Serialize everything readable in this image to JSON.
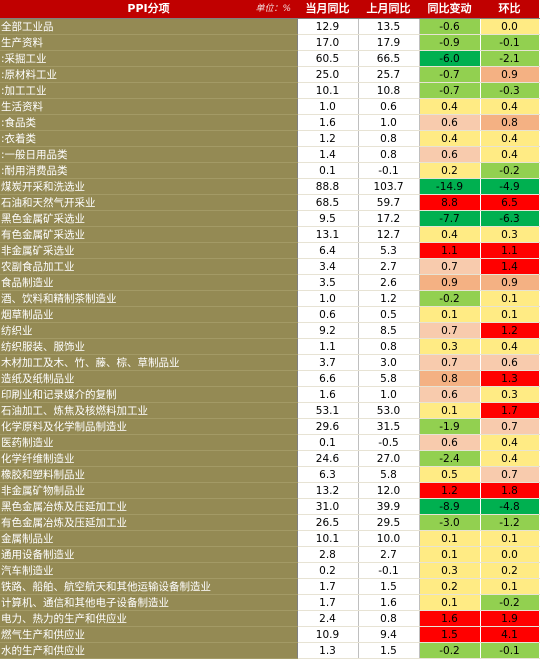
{
  "header": {
    "col_name": "PPI分项",
    "unit": "单位：%",
    "col_cur": "当月同比",
    "col_prev": "上月同比",
    "col_chg": "同比变动",
    "col_mom": "环比"
  },
  "colors": {
    "header_bg": "#c00000",
    "name_bg": "#948a54",
    "heat_scale": [
      "#00b050",
      "#92d050",
      "#ffeb84",
      "#f8cbad",
      "#f4b183",
      "#ff0000"
    ]
  },
  "chart_data": {
    "type": "table",
    "columns": [
      "当月同比",
      "上月同比",
      "同比变动",
      "环比"
    ],
    "rows": [
      {
        "name": "全部工业品",
        "cur": "12.9",
        "prev": "13.5",
        "chg": "-0.6",
        "mom": "0.0",
        "group_end": true
      },
      {
        "name": "生产资料",
        "cur": "17.0",
        "prev": "17.9",
        "chg": "-0.9",
        "mom": "-0.1"
      },
      {
        "name": ":采掘工业",
        "cur": "60.5",
        "prev": "66.5",
        "chg": "-6.0",
        "mom": "-2.1"
      },
      {
        "name": ":原材料工业",
        "cur": "25.0",
        "prev": "25.7",
        "chg": "-0.7",
        "mom": "0.9"
      },
      {
        "name": ":加工工业",
        "cur": "10.1",
        "prev": "10.8",
        "chg": "-0.7",
        "mom": "-0.3",
        "group_end": true
      },
      {
        "name": "生活资料",
        "cur": "1.0",
        "prev": "0.6",
        "chg": "0.4",
        "mom": "0.4"
      },
      {
        "name": ":食品类",
        "cur": "1.6",
        "prev": "1.0",
        "chg": "0.6",
        "mom": "0.8"
      },
      {
        "name": ":衣着类",
        "cur": "1.2",
        "prev": "0.8",
        "chg": "0.4",
        "mom": "0.4"
      },
      {
        "name": ":一般日用品类",
        "cur": "1.4",
        "prev": "0.8",
        "chg": "0.6",
        "mom": "0.4"
      },
      {
        "name": ":耐用消费品类",
        "cur": "0.1",
        "prev": "-0.1",
        "chg": "0.2",
        "mom": "-0.2",
        "group_end": true
      },
      {
        "name": "煤炭开采和洗选业",
        "cur": "88.8",
        "prev": "103.7",
        "chg": "-14.9",
        "mom": "-4.9"
      },
      {
        "name": "石油和天然气开采业",
        "cur": "68.5",
        "prev": "59.7",
        "chg": "8.8",
        "mom": "6.5"
      },
      {
        "name": "黑色金属矿采选业",
        "cur": "9.5",
        "prev": "17.2",
        "chg": "-7.7",
        "mom": "-6.3"
      },
      {
        "name": "有色金属矿采选业",
        "cur": "13.1",
        "prev": "12.7",
        "chg": "0.4",
        "mom": "0.3"
      },
      {
        "name": "非金属矿采选业",
        "cur": "6.4",
        "prev": "5.3",
        "chg": "1.1",
        "mom": "1.1"
      },
      {
        "name": "农副食品加工业",
        "cur": "3.4",
        "prev": "2.7",
        "chg": "0.7",
        "mom": "1.4"
      },
      {
        "name": "食品制造业",
        "cur": "3.5",
        "prev": "2.6",
        "chg": "0.9",
        "mom": "0.9"
      },
      {
        "name": "酒、饮料和精制茶制造业",
        "cur": "1.0",
        "prev": "1.2",
        "chg": "-0.2",
        "mom": "0.1"
      },
      {
        "name": "烟草制品业",
        "cur": "0.6",
        "prev": "0.5",
        "chg": "0.1",
        "mom": "0.1"
      },
      {
        "name": "纺织业",
        "cur": "9.2",
        "prev": "8.5",
        "chg": "0.7",
        "mom": "1.2"
      },
      {
        "name": "纺织服装、服饰业",
        "cur": "1.1",
        "prev": "0.8",
        "chg": "0.3",
        "mom": "0.4"
      },
      {
        "name": "木材加工及木、竹、藤、棕、草制品业",
        "cur": "3.7",
        "prev": "3.0",
        "chg": "0.7",
        "mom": "0.6"
      },
      {
        "name": "造纸及纸制品业",
        "cur": "6.6",
        "prev": "5.8",
        "chg": "0.8",
        "mom": "1.3"
      },
      {
        "name": "印刷业和记录媒介的复制",
        "cur": "1.6",
        "prev": "1.0",
        "chg": "0.6",
        "mom": "0.3"
      },
      {
        "name": "石油加工、炼焦及核燃料加工业",
        "cur": "53.1",
        "prev": "53.0",
        "chg": "0.1",
        "mom": "1.7"
      },
      {
        "name": "化学原料及化学制品制造业",
        "cur": "29.6",
        "prev": "31.5",
        "chg": "-1.9",
        "mom": "0.7"
      },
      {
        "name": "医药制造业",
        "cur": "0.1",
        "prev": "-0.5",
        "chg": "0.6",
        "mom": "0.4"
      },
      {
        "name": "化学纤维制造业",
        "cur": "24.6",
        "prev": "27.0",
        "chg": "-2.4",
        "mom": "0.4"
      },
      {
        "name": "橡胶和塑料制品业",
        "cur": "6.3",
        "prev": "5.8",
        "chg": "0.5",
        "mom": "0.7"
      },
      {
        "name": "非金属矿物制品业",
        "cur": "13.2",
        "prev": "12.0",
        "chg": "1.2",
        "mom": "1.8"
      },
      {
        "name": "黑色金属冶炼及压延加工业",
        "cur": "31.0",
        "prev": "39.9",
        "chg": "-8.9",
        "mom": "-4.8"
      },
      {
        "name": "有色金属冶炼及压延加工业",
        "cur": "26.5",
        "prev": "29.5",
        "chg": "-3.0",
        "mom": "-1.2"
      },
      {
        "name": "金属制品业",
        "cur": "10.1",
        "prev": "10.0",
        "chg": "0.1",
        "mom": "0.1"
      },
      {
        "name": "通用设备制造业",
        "cur": "2.8",
        "prev": "2.7",
        "chg": "0.1",
        "mom": "0.0"
      },
      {
        "name": "汽车制造业",
        "cur": "0.2",
        "prev": "-0.1",
        "chg": "0.3",
        "mom": "0.2"
      },
      {
        "name": "铁路、船舶、航空航天和其他运输设备制造业",
        "cur": "1.7",
        "prev": "1.5",
        "chg": "0.2",
        "mom": "0.1"
      },
      {
        "name": "计算机、通信和其他电子设备制造业",
        "cur": "1.7",
        "prev": "1.6",
        "chg": "0.1",
        "mom": "-0.2"
      },
      {
        "name": "电力、热力的生产和供应业",
        "cur": "2.4",
        "prev": "0.8",
        "chg": "1.6",
        "mom": "1.9"
      },
      {
        "name": "燃气生产和供应业",
        "cur": "10.9",
        "prev": "9.4",
        "chg": "1.5",
        "mom": "4.1"
      },
      {
        "name": "水的生产和供应业",
        "cur": "1.3",
        "prev": "1.5",
        "chg": "-0.2",
        "mom": "-0.1"
      }
    ]
  }
}
